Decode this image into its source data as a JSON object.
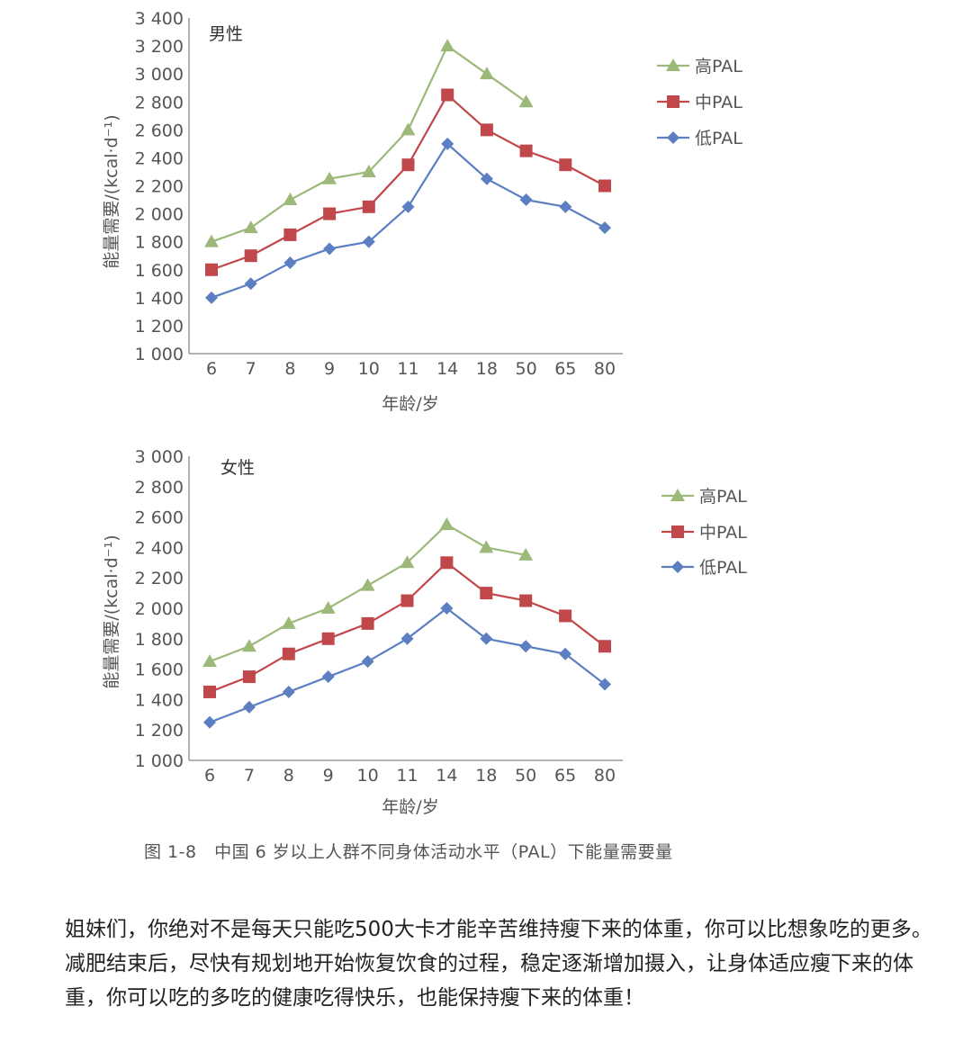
{
  "chart_data": [
    {
      "type": "line",
      "panel_label": "男性",
      "categories": [
        "6",
        "7",
        "8",
        "9",
        "10",
        "11",
        "14",
        "18",
        "50",
        "65",
        "80"
      ],
      "xlabel": "年龄/岁",
      "ylabel": "能量需要/(kcal·d⁻¹)",
      "yticks": [
        "1 000",
        "1 200",
        "1 400",
        "1 600",
        "1 800",
        "2 000",
        "2 200",
        "2 400",
        "2 600",
        "2 800",
        "3 000",
        "3 200",
        "3 400"
      ],
      "ylim": [
        1000,
        3400
      ],
      "grid": false,
      "legend_position": "right",
      "series": [
        {
          "name": "高PAL",
          "marker": "triangle",
          "color": "#9cb97a",
          "values": [
            1800,
            1900,
            2100,
            2250,
            2300,
            2600,
            3200,
            3000,
            2800,
            null,
            null
          ]
        },
        {
          "name": "中PAL",
          "marker": "square",
          "color": "#c0474a",
          "values": [
            1600,
            1700,
            1850,
            2000,
            2050,
            2350,
            2850,
            2600,
            2450,
            2350,
            2200
          ]
        },
        {
          "name": "低PAL",
          "marker": "diamond",
          "color": "#5b7fc2",
          "values": [
            1400,
            1500,
            1650,
            1750,
            1800,
            2050,
            2500,
            2250,
            2100,
            2050,
            1900
          ]
        }
      ]
    },
    {
      "type": "line",
      "panel_label": "女性",
      "categories": [
        "6",
        "7",
        "8",
        "9",
        "10",
        "11",
        "14",
        "18",
        "50",
        "65",
        "80"
      ],
      "xlabel": "年龄/岁",
      "ylabel": "能量需要/(kcal·d⁻¹)",
      "yticks": [
        "1 000",
        "1 200",
        "1 400",
        "1 600",
        "1 800",
        "2 000",
        "2 200",
        "2 400",
        "2 600",
        "2 800",
        "3 000"
      ],
      "ylim": [
        1000,
        3000
      ],
      "grid": false,
      "legend_position": "right",
      "series": [
        {
          "name": "高PAL",
          "marker": "triangle",
          "color": "#9cb97a",
          "values": [
            1650,
            1750,
            1900,
            2000,
            2150,
            2300,
            2550,
            2400,
            2350,
            null,
            null
          ]
        },
        {
          "name": "中PAL",
          "marker": "square",
          "color": "#c0474a",
          "values": [
            1450,
            1550,
            1700,
            1800,
            1900,
            2050,
            2300,
            2100,
            2050,
            1950,
            1750
          ]
        },
        {
          "name": "低PAL",
          "marker": "diamond",
          "color": "#5b7fc2",
          "values": [
            1250,
            1350,
            1450,
            1550,
            1650,
            1800,
            2000,
            1800,
            1750,
            1700,
            1500
          ]
        }
      ]
    }
  ],
  "caption": "图 1-8　中国 6 岁以上人群不同身体活动水平（PAL）下能量需要量",
  "body_text": "姐妹们，你绝对不是每天只能吃500大卡才能辛苦维持瘦下来的体重，你可以比想象吃的更多。减肥结束后，尽快有规划地开始恢复饮食的过程，稳定逐渐增加摄入，让身体适应瘦下来的体重，你可以吃的多吃的健康吃得快乐，也能保持瘦下来的体重！"
}
